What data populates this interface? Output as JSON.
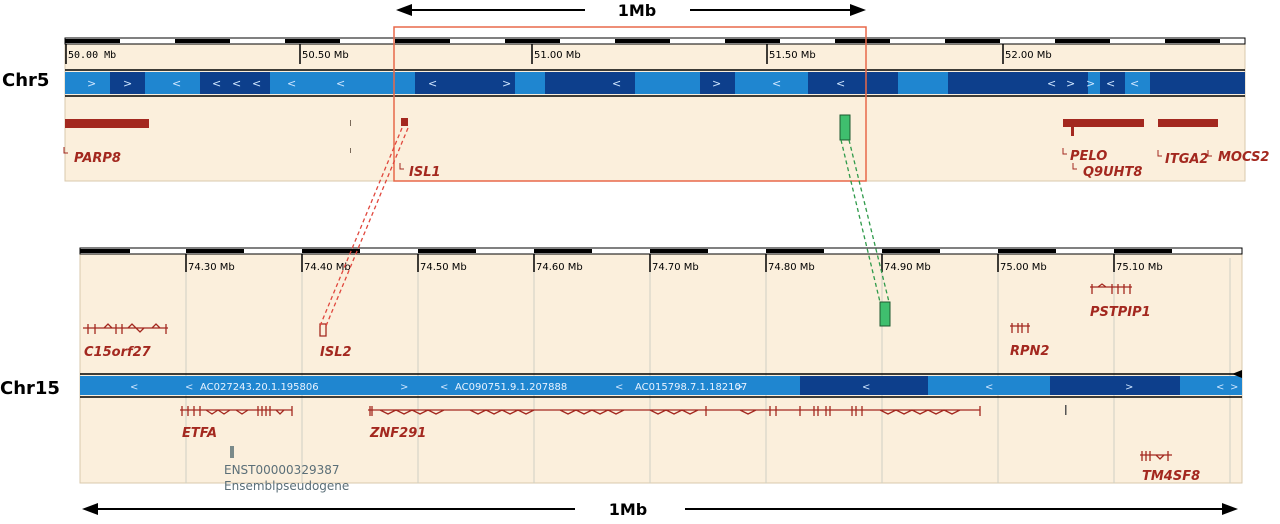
{
  "scale_bar": {
    "label": "1Mb"
  },
  "chr5": {
    "label": "Chr5",
    "ticks": [
      "50.00 Mb",
      "50.50 Mb",
      "51.00 Mb",
      "51.50 Mb",
      "52.00 Mb"
    ],
    "genes": [
      "PARP8",
      "ISL1",
      "PELO",
      "Q9UHT8",
      "ITGA2",
      "MOCS2"
    ]
  },
  "chr15": {
    "label": "Chr15",
    "ticks": [
      "74.30 Mb",
      "74.40 Mb",
      "74.50 Mb",
      "74.60 Mb",
      "74.70 Mb",
      "74.80 Mb",
      "74.90 Mb",
      "75.00 Mb",
      "75.10 Mb"
    ],
    "genes_top": [
      "C15orf27",
      "ISL2",
      "RPN2",
      "PSTPIP1"
    ],
    "contigs": [
      "AC027243.20.1.195806",
      "AC090751.9.1.207888",
      "AC015798.7.1.182107"
    ],
    "genes_bottom": [
      "ETFA",
      "ZNF291",
      "TM4SF8"
    ],
    "pseudogene": {
      "id": "ENST00000329387",
      "type": "Ensemblpseudogene"
    }
  },
  "colors": {
    "panel_bg": "#fbefdc",
    "contig_light": "#1f86d0",
    "contig_dark": "#0d3f8c",
    "gene": "#a3281f",
    "highlight": "#e8684a",
    "red_link": "#e0473d",
    "green_link": "#2f9a4a",
    "green_gene": "#3fbf6e"
  }
}
